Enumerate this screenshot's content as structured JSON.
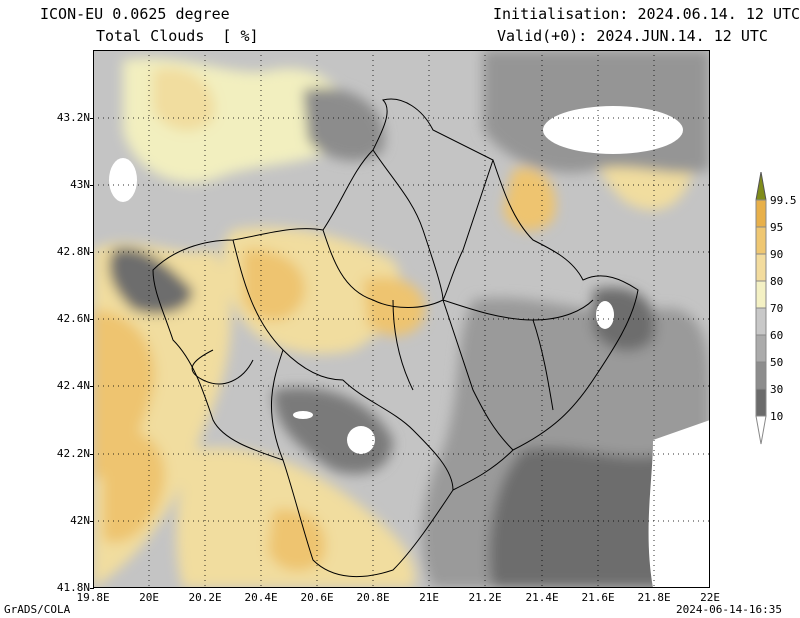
{
  "header": {
    "model": "ICON-EU 0.0625 degree",
    "field": "Total Clouds  [ %]",
    "init": "Initialisation: 2024.06.14. 12 UTC",
    "valid": "Valid(+0): 2024.JUN.14. 12 UTC"
  },
  "footer": {
    "software": "GrADS/COLA",
    "timestamp": "2024-06-14-16:35"
  },
  "axes": {
    "lat_labels": [
      "43.2N",
      "43N",
      "42.8N",
      "42.6N",
      "42.4N",
      "42.2N",
      "42N",
      "41.8N"
    ],
    "lon_labels": [
      "19.8E",
      "20E",
      "20.2E",
      "20.4E",
      "20.6E",
      "20.8E",
      "21E",
      "21.2E",
      "21.4E",
      "21.6E",
      "21.8E",
      "22E"
    ]
  },
  "legend": {
    "levels": [
      {
        "label": "99.5",
        "color": "#7f8c1a"
      },
      {
        "label": "95",
        "color": "#e8b04a"
      },
      {
        "label": "90",
        "color": "#efc772"
      },
      {
        "label": "80",
        "color": "#f3dc9e"
      },
      {
        "label": "70",
        "color": "#f4f1c4"
      },
      {
        "label": "60",
        "color": "#c8c8c8"
      },
      {
        "label": "50",
        "color": "#ababab"
      },
      {
        "label": "30",
        "color": "#8d8d8d"
      },
      {
        "label": "10",
        "color": "#6b6b6b"
      },
      {
        "label": "",
        "color": "#ffffff"
      }
    ]
  },
  "colors": {
    "clear": "#ffffff",
    "dark": "#686868",
    "mid": "#8f8f8f",
    "light_gray": "#b4b4b4",
    "pale_gray": "#d0d0d0",
    "pale_yellow": "#f2efbf",
    "yellow": "#f1dd9f",
    "orange": "#eec46f"
  }
}
